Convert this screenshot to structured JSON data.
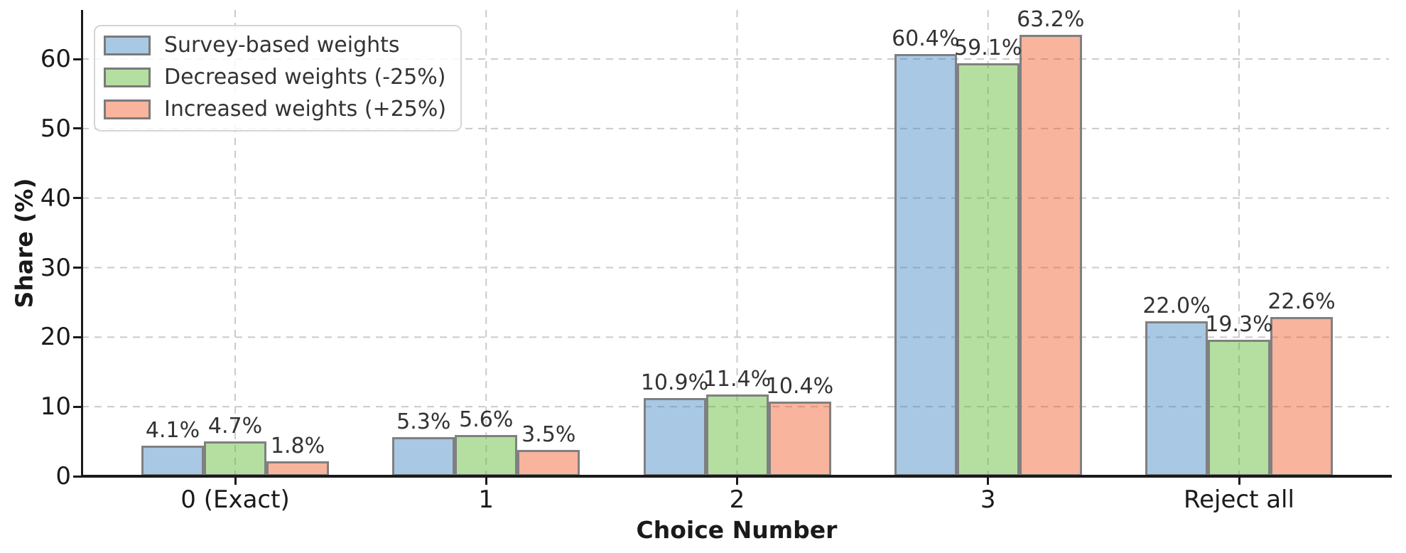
{
  "chart_data": {
    "type": "bar",
    "title": "",
    "xlabel": "Choice Number",
    "ylabel": "Share (%)",
    "categories": [
      "0 (Exact)",
      "1",
      "2",
      "3",
      "Reject all"
    ],
    "series": [
      {
        "name": "Survey-based weights",
        "values": [
          4.1,
          5.3,
          10.9,
          60.4,
          22.0
        ],
        "value_labels": [
          "4.1%",
          "5.3%",
          "10.9%",
          "60.4%",
          "22.0%"
        ],
        "fill": "rgba(62,133,196,0.45)",
        "fill_hex_on_white": "#a8c8e4"
      },
      {
        "name": "Decreased weights (-25%)",
        "values": [
          4.7,
          5.6,
          11.4,
          59.1,
          19.3
        ],
        "value_labels": [
          "4.7%",
          "5.6%",
          "11.4%",
          "59.1%",
          "19.3%"
        ],
        "fill": "rgba(91,184,44,0.45)",
        "fill_hex_on_white": "#b5dfa0"
      },
      {
        "name": "Increased weights (+25%)",
        "values": [
          1.8,
          3.5,
          10.4,
          63.2,
          22.6
        ],
        "value_labels": [
          "1.8%",
          "3.5%",
          "10.4%",
          "63.2%",
          "22.6%"
        ],
        "fill": "rgba(240,89,36,0.45)",
        "fill_hex_on_white": "#f8b49c"
      }
    ],
    "y_ticks": [
      0,
      10,
      20,
      30,
      40,
      50,
      60
    ],
    "ylim": [
      0,
      67
    ],
    "grid": {
      "horizontal": true,
      "vertical": true,
      "style": "dashed"
    },
    "legend_position": "upper-left",
    "colors": {
      "bar_edge": "#808080",
      "grid_line": "#cbcbcb",
      "axis": "#1a1a1a",
      "tick_text": "#1a1a1a",
      "bar_label_text": "#333333"
    }
  }
}
